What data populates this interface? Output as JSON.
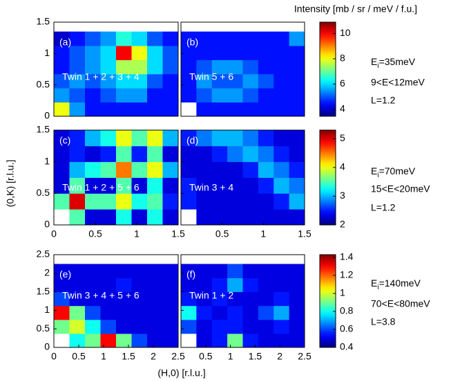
{
  "colorbar_title": "Intensity [mb / sr / meV / f.u.]",
  "ylabel": "(0,K) [r.l.u.]",
  "xlabel": "(H,0) [r.l.u.]",
  "chart_data": [
    {
      "type": "heatmap",
      "xlim": [
        0,
        1.5
      ],
      "ylim": [
        0,
        1.5
      ],
      "yticks": [
        0,
        0.5,
        1,
        1.5
      ],
      "x_edges": [
        0,
        0.1875,
        0.375,
        0.5625,
        0.75,
        0.9375,
        1.125,
        1.3125,
        1.5
      ],
      "y_edges": [
        0,
        0.225,
        0.45,
        0.675,
        0.9,
        1.125,
        1.35
      ],
      "clim": [
        3.45,
        10.9
      ],
      "cticks": [
        4,
        6,
        8,
        10
      ],
      "notes": [
        {
          "main": "E",
          "sub": "i",
          "rest": "=35meV"
        },
        "9<E<12meV",
        "L=1.2"
      ],
      "panels": [
        {
          "label": "(a)",
          "caption": "Twin 1 + 2 + 3 + 4",
          "z": [
            [
              8,
              5.5,
              4.5,
              4.5,
              4.5,
              4.5,
              4.5,
              4.5
            ],
            [
              5.5,
              5,
              4.5,
              5,
              5.5,
              5.5,
              4.5,
              4.5
            ],
            [
              5,
              5.5,
              5,
              5.5,
              6,
              6,
              5,
              4.5
            ],
            [
              4.5,
              5,
              5.5,
              6,
              7.5,
              7.5,
              6,
              5
            ],
            [
              4.5,
              5,
              5.5,
              6,
              10,
              8,
              6,
              5
            ],
            [
              4,
              4.5,
              5,
              5.5,
              6.5,
              6,
              5,
              4.5
            ]
          ]
        },
        {
          "label": "(b)",
          "caption": "Twin 5 + 6",
          "z": [
            [
              null,
              4.5,
              4.5,
              4.5,
              4.5,
              4.5,
              4.5,
              4.5
            ],
            [
              4.5,
              5,
              5.5,
              5.5,
              5,
              4.5,
              4.5,
              4.5
            ],
            [
              4.5,
              5.5,
              5,
              5,
              5.5,
              5,
              4.5,
              4.5
            ],
            [
              4.5,
              5,
              5.5,
              5.5,
              5,
              4.5,
              4.5,
              4.5
            ],
            [
              4.5,
              4.5,
              4.5,
              4.5,
              4.5,
              4.5,
              4.5,
              4.5
            ],
            [
              4.5,
              4.5,
              4.5,
              4.5,
              4.5,
              4.5,
              4.5,
              5.5
            ]
          ]
        }
      ]
    },
    {
      "type": "heatmap",
      "xlim": [
        0,
        1.5
      ],
      "ylim": [
        0,
        1.5
      ],
      "yticks": [
        0,
        0.5,
        1,
        1.5
      ],
      "x_edges": [
        0,
        0.1875,
        0.375,
        0.5625,
        0.75,
        0.9375,
        1.125,
        1.3125,
        1.5
      ],
      "y_edges": [
        0,
        0.25,
        0.5,
        0.75,
        1,
        1.25,
        1.5
      ],
      "clim": [
        2,
        5.3
      ],
      "cticks": [
        2,
        3,
        4,
        5
      ],
      "notes": [
        {
          "main": "E",
          "sub": "i",
          "rest": "=70meV"
        },
        "15<E<20meV",
        "L=1.2"
      ],
      "panels": [
        {
          "label": "(c)",
          "caption": "Twin 1 + 2 + 5 + 6",
          "xticks": [
            0,
            0.5,
            1,
            1.5
          ],
          "z": [
            [
              null,
              3.5,
              2.3,
              2.3,
              3.3,
              2.3,
              3.3,
              2.3
            ],
            [
              3.5,
              5,
              3.5,
              3.5,
              4,
              3.3,
              3.5,
              2.5
            ],
            [
              2.3,
              3.5,
              2.3,
              2.3,
              3.5,
              2.3,
              3.3,
              2.3
            ],
            [
              2.3,
              3,
              3.3,
              3.5,
              4.5,
              3.5,
              4,
              3
            ],
            [
              2.3,
              2.5,
              2.3,
              2.5,
              3.5,
              2.5,
              3.5,
              2.3
            ],
            [
              2.3,
              2.5,
              3,
              3.3,
              4,
              3.5,
              4,
              3
            ]
          ]
        },
        {
          "label": "(d)",
          "caption": "Twin 3 + 4",
          "xticks": [
            0.5,
            1,
            1.5
          ],
          "z": [
            [
              null,
              2.3,
              2.3,
              2.3,
              2.3,
              2.3,
              2.3,
              2.3
            ],
            [
              2.5,
              2.3,
              2.3,
              2.3,
              2.3,
              2.3,
              2.5,
              3
            ],
            [
              2.5,
              2.3,
              2.3,
              2.3,
              2.3,
              2.5,
              3,
              2.8
            ],
            [
              2.3,
              2.3,
              2.3,
              2.3,
              2.5,
              3,
              2.8,
              2.5
            ],
            [
              2.3,
              2.3,
              2.5,
              2.8,
              3,
              2.8,
              2.5,
              2.3
            ],
            [
              2.5,
              2.8,
              3,
              3,
              2.8,
              2.5,
              2.3,
              2.3
            ]
          ]
        }
      ]
    },
    {
      "type": "heatmap",
      "xlim": [
        0,
        2.5
      ],
      "ylim": [
        0,
        2.5
      ],
      "yticks": [
        0,
        0.5,
        1,
        1.5,
        2,
        2.5
      ],
      "x_edges": [
        0,
        0.3125,
        0.625,
        0.9375,
        1.25,
        1.5625,
        1.875,
        2.1875,
        2.5
      ],
      "y_edges": [
        0,
        0.375,
        0.75,
        1.125,
        1.5,
        1.875,
        2.25
      ],
      "clim": [
        0.4,
        1.43
      ],
      "cticks": [
        0.4,
        0.6,
        0.8,
        1,
        1.2,
        1.4
      ],
      "notes": [
        {
          "main": "E",
          "sub": "i",
          "rest": "=140meV"
        },
        "70<E<80meV",
        "L=3.8"
      ],
      "panels": [
        {
          "label": "(e)",
          "caption": "Twin 3 + 4 + 5 + 6",
          "xticks": [
            0,
            0.5,
            1,
            1.5,
            2,
            2.5
          ],
          "z": [
            [
              null,
              0.8,
              0.9,
              1.3,
              0.9,
              0.6,
              0.5,
              0.5
            ],
            [
              0.9,
              1,
              0.8,
              0.6,
              0.5,
              0.5,
              0.5,
              0.5
            ],
            [
              1.3,
              0.9,
              0.6,
              0.5,
              0.5,
              0.5,
              0.5,
              0.5
            ],
            [
              0.6,
              0.5,
              0.5,
              0.5,
              0.5,
              0.5,
              0.5,
              0.5
            ],
            [
              0.5,
              0.5,
              0.5,
              0.5,
              0.55,
              0.5,
              0.5,
              0.5
            ],
            [
              0.5,
              0.5,
              0.5,
              0.5,
              0.5,
              0.5,
              0.5,
              0.5
            ]
          ]
        },
        {
          "label": "(f)",
          "caption": "Twin 1 + 2",
          "xticks": [
            0.5,
            1,
            1.5,
            2,
            2.5
          ],
          "z": [
            [
              null,
              0.5,
              0.55,
              0.9,
              0.55,
              0.5,
              0.5,
              0.5
            ],
            [
              0.6,
              0.5,
              0.55,
              0.55,
              0.5,
              0.5,
              0.55,
              0.5
            ],
            [
              0.8,
              0.55,
              0.5,
              0.55,
              0.5,
              0.6,
              0.7,
              0.5
            ],
            [
              0.55,
              0.5,
              0.55,
              0.5,
              0.5,
              0.5,
              0.55,
              0.5
            ],
            [
              0.5,
              0.5,
              0.55,
              0.7,
              0.55,
              0.5,
              0.5,
              0.5
            ],
            [
              0.5,
              0.5,
              0.5,
              0.6,
              0.5,
              0.5,
              0.5,
              0.5
            ]
          ]
        }
      ]
    }
  ]
}
